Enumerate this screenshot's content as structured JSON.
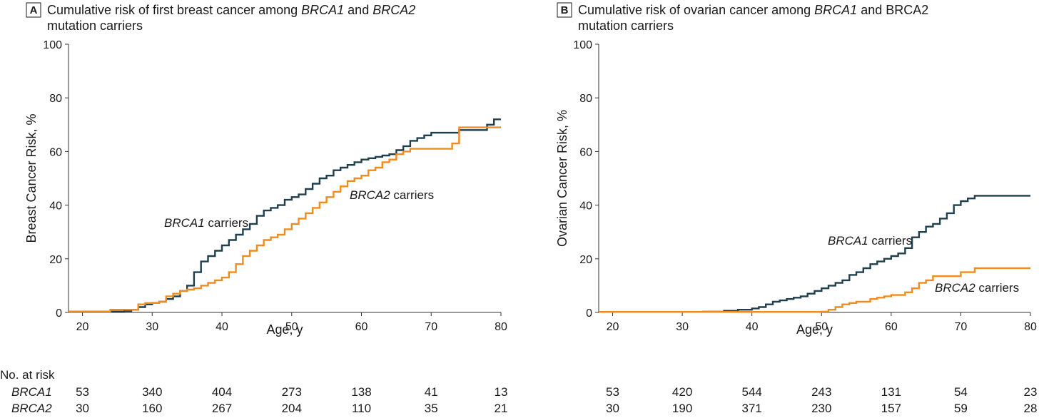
{
  "chart_data": [
    {
      "type": "line",
      "panel_letter": "A",
      "title_parts": [
        "Cumulative risk of first breast cancer among ",
        "BRCA1",
        " and ",
        "BRCA2"
      ],
      "title_line2": "mutation carriers",
      "xlabel": "Age, y",
      "ylabel": "Breast Cancer Risk, %",
      "xlim": [
        18,
        80
      ],
      "ylim": [
        0,
        100
      ],
      "xticks": [
        20,
        30,
        40,
        50,
        60,
        70,
        80
      ],
      "yticks": [
        0,
        20,
        40,
        60,
        80,
        100
      ],
      "grid": false,
      "series": [
        {
          "name": "BRCA1 carriers",
          "label_gene": "BRCA1",
          "label_suffix": " carriers",
          "color": "#1f3f4f",
          "points": [
            [
              18,
              0.3
            ],
            [
              26,
              0.5
            ],
            [
              27,
              1
            ],
            [
              28,
              2
            ],
            [
              29,
              3
            ],
            [
              30,
              3.5
            ],
            [
              31,
              4
            ],
            [
              32,
              5
            ],
            [
              33,
              6
            ],
            [
              34,
              8
            ],
            [
              35,
              10
            ],
            [
              36,
              15
            ],
            [
              37,
              19
            ],
            [
              38,
              21
            ],
            [
              39,
              23
            ],
            [
              40,
              25
            ],
            [
              41,
              27
            ],
            [
              42,
              29
            ],
            [
              43,
              31
            ],
            [
              44,
              33
            ],
            [
              45,
              36
            ],
            [
              46,
              38
            ],
            [
              47,
              39
            ],
            [
              48,
              40
            ],
            [
              49,
              42
            ],
            [
              50,
              43
            ],
            [
              51,
              44
            ],
            [
              52,
              46
            ],
            [
              53,
              48
            ],
            [
              54,
              50
            ],
            [
              55,
              51
            ],
            [
              56,
              53
            ],
            [
              57,
              54
            ],
            [
              58,
              55
            ],
            [
              59,
              56
            ],
            [
              60,
              57
            ],
            [
              61,
              57.5
            ],
            [
              62,
              58
            ],
            [
              63,
              58.5
            ],
            [
              64,
              59
            ],
            [
              65,
              60.5
            ],
            [
              66,
              62
            ],
            [
              67,
              64
            ],
            [
              68,
              65
            ],
            [
              69,
              66
            ],
            [
              70,
              67
            ],
            [
              72,
              67
            ],
            [
              74,
              68
            ],
            [
              78,
              70
            ],
            [
              79,
              72
            ],
            [
              80,
              72
            ]
          ]
        },
        {
          "name": "BRCA2 carriers",
          "label_gene": "BRCA2",
          "label_suffix": " carriers",
          "color": "#f08c1e",
          "points": [
            [
              18,
              0.3
            ],
            [
              24,
              1
            ],
            [
              28,
              3
            ],
            [
              29,
              3.5
            ],
            [
              31,
              4
            ],
            [
              32,
              6
            ],
            [
              33,
              7
            ],
            [
              34,
              8
            ],
            [
              35,
              8.5
            ],
            [
              36,
              9
            ],
            [
              37,
              10
            ],
            [
              38,
              11
            ],
            [
              39,
              12
            ],
            [
              40,
              13
            ],
            [
              41,
              15
            ],
            [
              42,
              18
            ],
            [
              43,
              21
            ],
            [
              44,
              23
            ],
            [
              45,
              25
            ],
            [
              46,
              27
            ],
            [
              47,
              28
            ],
            [
              48,
              29
            ],
            [
              49,
              31
            ],
            [
              50,
              33
            ],
            [
              51,
              35
            ],
            [
              52,
              37
            ],
            [
              53,
              39
            ],
            [
              54,
              41
            ],
            [
              55,
              43
            ],
            [
              56,
              45
            ],
            [
              57,
              47
            ],
            [
              58,
              49
            ],
            [
              59,
              50
            ],
            [
              60,
              51
            ],
            [
              61,
              53
            ],
            [
              62,
              54
            ],
            [
              63,
              56
            ],
            [
              64,
              57
            ],
            [
              65,
              59
            ],
            [
              66,
              60
            ],
            [
              67,
              61
            ],
            [
              70,
              61
            ],
            [
              73,
              63
            ],
            [
              74,
              69
            ],
            [
              80,
              69
            ]
          ]
        }
      ],
      "at_risk": {
        "heading": "No. at risk",
        "x_positions": [
          20,
          30,
          40,
          50,
          60,
          70,
          80
        ],
        "rows": [
          {
            "label": "BRCA1",
            "values": [
              "53",
              "340",
              "404",
              "273",
              "138",
              "41",
              "13"
            ]
          },
          {
            "label": "BRCA2",
            "values": [
              "30",
              "160",
              "267",
              "204",
              "110",
              "35",
              "21"
            ]
          }
        ]
      }
    },
    {
      "type": "line",
      "panel_letter": "B",
      "title_parts": [
        "Cumulative risk of ovarian cancer among ",
        "BRCA1",
        " and ",
        "BRCA2"
      ],
      "title_line2": "mutation carriers",
      "xlabel": "Age, y",
      "ylabel": "Ovarian Cancer Risk, %",
      "xlim": [
        18,
        80
      ],
      "ylim": [
        0,
        100
      ],
      "xticks": [
        20,
        30,
        40,
        50,
        60,
        70,
        80
      ],
      "yticks": [
        0,
        20,
        40,
        60,
        80,
        100
      ],
      "grid": false,
      "series": [
        {
          "name": "BRCA1 carriers",
          "label_gene": "BRCA1",
          "label_suffix": " carriers",
          "color": "#1f3f4f",
          "points": [
            [
              18,
              0.2
            ],
            [
              33,
              0.3
            ],
            [
              36,
              0.6
            ],
            [
              38,
              1
            ],
            [
              40,
              1.5
            ],
            [
              41,
              2
            ],
            [
              42,
              3
            ],
            [
              43,
              4
            ],
            [
              44,
              4.5
            ],
            [
              45,
              5
            ],
            [
              46,
              5.5
            ],
            [
              47,
              6
            ],
            [
              48,
              7
            ],
            [
              49,
              8
            ],
            [
              50,
              9
            ],
            [
              51,
              10
            ],
            [
              52,
              11
            ],
            [
              53,
              12
            ],
            [
              54,
              14
            ],
            [
              55,
              15
            ],
            [
              56,
              16.5
            ],
            [
              57,
              18
            ],
            [
              58,
              19
            ],
            [
              59,
              20
            ],
            [
              60,
              21
            ],
            [
              61,
              22
            ],
            [
              62,
              24
            ],
            [
              63,
              28
            ],
            [
              64,
              30
            ],
            [
              65,
              32
            ],
            [
              66,
              33
            ],
            [
              67,
              35
            ],
            [
              68,
              37
            ],
            [
              69,
              40
            ],
            [
              70,
              41.5
            ],
            [
              71,
              42.5
            ],
            [
              72,
              43.5
            ],
            [
              80,
              43.5
            ]
          ]
        },
        {
          "name": "BRCA2 carriers",
          "label_gene": "BRCA2",
          "label_suffix": " carriers",
          "color": "#f08c1e",
          "points": [
            [
              18,
              0.2
            ],
            [
              50,
              0.3
            ],
            [
              51,
              1
            ],
            [
              52,
              2
            ],
            [
              53,
              3
            ],
            [
              54,
              3.5
            ],
            [
              55,
              4
            ],
            [
              57,
              5
            ],
            [
              58,
              5.5
            ],
            [
              59,
              6
            ],
            [
              60,
              6.5
            ],
            [
              62,
              7.5
            ],
            [
              63,
              9
            ],
            [
              64,
              11
            ],
            [
              65,
              12
            ],
            [
              66,
              13.5
            ],
            [
              70,
              15
            ],
            [
              72,
              16.5
            ],
            [
              80,
              16.5
            ]
          ]
        }
      ],
      "at_risk": {
        "x_positions": [
          20,
          30,
          40,
          50,
          60,
          70,
          80
        ],
        "rows": [
          {
            "label": "BRCA1",
            "values": [
              "53",
              "420",
              "544",
              "243",
              "131",
              "54",
              "23"
            ]
          },
          {
            "label": "BRCA2",
            "values": [
              "30",
              "190",
              "371",
              "230",
              "157",
              "59",
              "28"
            ]
          }
        ]
      }
    }
  ]
}
